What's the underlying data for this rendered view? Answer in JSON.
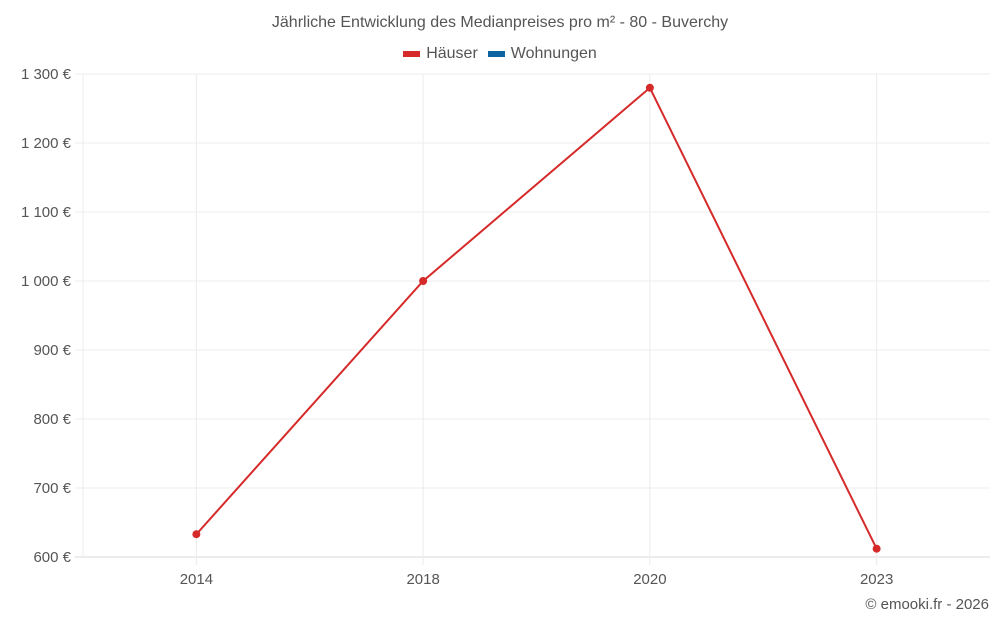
{
  "chart_data": {
    "type": "line",
    "title": "Jährliche Entwicklung des Medianpreises pro m² - 80 - Buverchy",
    "categories": [
      "2014",
      "2018",
      "2020",
      "2023"
    ],
    "series": [
      {
        "name": "Häuser",
        "color": "#d62a2a",
        "values": [
          633,
          1000,
          1280,
          612
        ]
      },
      {
        "name": "Wohnungen",
        "color": "#0e64a0",
        "values": []
      }
    ],
    "xlabel": "",
    "ylabel": "",
    "ylim": [
      600,
      1300
    ],
    "yticks": [
      "600 €",
      "700 €",
      "800 €",
      "900 €",
      "1 000 €",
      "1 100 €",
      "1 200 €",
      "1 300 €"
    ],
    "grid": true,
    "legend_position": "top"
  },
  "title": "Jährliche Entwicklung des Medianpreises pro m² - 80 - Buverchy",
  "legend": [
    {
      "label": "Häuser",
      "color": "#d62a2a"
    },
    {
      "label": "Wohnungen",
      "color": "#0e64a0"
    }
  ],
  "credit": "© emooki.fr - 2026"
}
